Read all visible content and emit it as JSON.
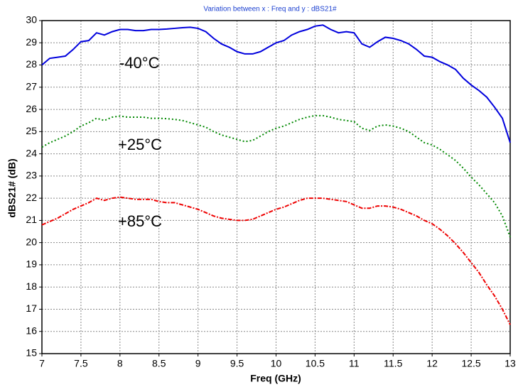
{
  "chart_data": {
    "type": "line",
    "title": "Variation between  x : Freq and y : dBS21#",
    "xlabel": "Freq (GHz)",
    "ylabel": "dBS21# (dB)",
    "annotations": [
      "-40°C",
      "+25°C",
      "+85°C"
    ],
    "xlim": [
      7,
      13
    ],
    "ylim": [
      15,
      30
    ],
    "xticks": [
      7,
      7.5,
      8,
      8.5,
      9,
      9.5,
      10,
      10.5,
      11,
      11.5,
      12,
      12.5,
      13
    ],
    "yticks": [
      15,
      16,
      17,
      18,
      19,
      20,
      21,
      22,
      23,
      24,
      25,
      26,
      27,
      28,
      29,
      30
    ],
    "grid": true,
    "x": [
      7.0,
      7.1,
      7.2,
      7.3,
      7.4,
      7.5,
      7.6,
      7.7,
      7.8,
      7.9,
      8.0,
      8.1,
      8.2,
      8.3,
      8.4,
      8.5,
      8.6,
      8.7,
      8.8,
      8.9,
      9.0,
      9.1,
      9.2,
      9.3,
      9.4,
      9.5,
      9.6,
      9.7,
      9.8,
      9.9,
      10.0,
      10.1,
      10.2,
      10.3,
      10.4,
      10.5,
      10.6,
      10.7,
      10.8,
      10.9,
      11.0,
      11.1,
      11.2,
      11.3,
      11.4,
      11.5,
      11.6,
      11.7,
      11.8,
      11.9,
      12.0,
      12.1,
      12.2,
      12.3,
      12.4,
      12.5,
      12.6,
      12.7,
      12.8,
      12.9,
      13.0
    ],
    "series": [
      {
        "color": "#0000dd",
        "linestyle": "solid",
        "values": [
          28.0,
          28.3,
          28.35,
          28.4,
          28.7,
          29.05,
          29.1,
          29.45,
          29.35,
          29.5,
          29.6,
          29.6,
          29.55,
          29.55,
          29.6,
          29.6,
          29.62,
          29.65,
          29.68,
          29.7,
          29.65,
          29.5,
          29.2,
          28.95,
          28.8,
          28.6,
          28.5,
          28.5,
          28.6,
          28.8,
          29.0,
          29.1,
          29.35,
          29.5,
          29.6,
          29.75,
          29.8,
          29.6,
          29.45,
          29.5,
          29.45,
          28.95,
          28.8,
          29.05,
          29.25,
          29.2,
          29.1,
          28.95,
          28.7,
          28.4,
          28.35,
          28.15,
          28.0,
          27.8,
          27.4,
          27.1,
          26.85,
          26.55,
          26.1,
          25.6,
          24.5
        ]
      },
      {
        "color": "#008800",
        "linestyle": "dotted",
        "values": [
          24.3,
          24.5,
          24.65,
          24.8,
          25.0,
          25.25,
          25.4,
          25.6,
          25.5,
          25.65,
          25.7,
          25.65,
          25.65,
          25.65,
          25.6,
          25.6,
          25.58,
          25.55,
          25.5,
          25.4,
          25.3,
          25.2,
          25.0,
          24.85,
          24.75,
          24.65,
          24.55,
          24.6,
          24.8,
          25.0,
          25.15,
          25.25,
          25.4,
          25.55,
          25.65,
          25.72,
          25.72,
          25.65,
          25.55,
          25.5,
          25.45,
          25.15,
          25.05,
          25.25,
          25.3,
          25.25,
          25.15,
          25.0,
          24.75,
          24.5,
          24.4,
          24.2,
          23.95,
          23.7,
          23.35,
          22.95,
          22.6,
          22.2,
          21.8,
          21.2,
          20.25
        ]
      },
      {
        "color": "#ee0000",
        "linestyle": "dashdot",
        "values": [
          20.8,
          20.95,
          21.1,
          21.3,
          21.5,
          21.65,
          21.8,
          22.0,
          21.9,
          22.0,
          22.05,
          22.0,
          21.95,
          21.95,
          21.95,
          21.85,
          21.8,
          21.8,
          21.7,
          21.6,
          21.5,
          21.35,
          21.2,
          21.1,
          21.05,
          21.0,
          21.0,
          21.05,
          21.2,
          21.35,
          21.5,
          21.6,
          21.75,
          21.9,
          22.0,
          22.0,
          22.0,
          21.95,
          21.9,
          21.85,
          21.7,
          21.55,
          21.55,
          21.65,
          21.65,
          21.6,
          21.5,
          21.35,
          21.2,
          21.0,
          20.85,
          20.6,
          20.3,
          19.95,
          19.55,
          19.1,
          18.65,
          18.1,
          17.6,
          17.0,
          16.3
        ]
      }
    ]
  }
}
